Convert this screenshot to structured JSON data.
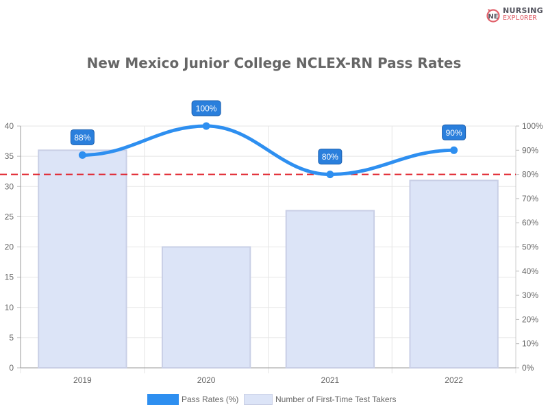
{
  "logo": {
    "line1": "NURSING",
    "line2": "EXPLORER"
  },
  "title": "New Mexico Junior College NCLEX-RN Pass Rates",
  "legend": [
    {
      "label": "Pass Rates (%)",
      "color": "#2e8ff0"
    },
    {
      "label": "Number of First-Time Test Takers",
      "color": "#dce4f7",
      "border": "#c9cfe6"
    }
  ],
  "chart_data": {
    "type": "bar+line",
    "title": "New Mexico Junior College NCLEX-RN Pass Rates",
    "categories": [
      "2019",
      "2020",
      "2021",
      "2022"
    ],
    "series": [
      {
        "name": "Number of First-Time Test Takers",
        "type": "bar",
        "axis": "left",
        "values": [
          36,
          20,
          26,
          31
        ],
        "color": "#dce4f7"
      },
      {
        "name": "Pass Rates (%)",
        "type": "line",
        "axis": "right",
        "values": [
          88,
          100,
          80,
          90
        ],
        "labels": [
          "88%",
          "100%",
          "80%",
          "90%"
        ],
        "color": "#2e8ff0"
      }
    ],
    "reference_line": {
      "axis": "right",
      "value": 80,
      "style": "dashed",
      "color": "#e0202a"
    },
    "left_axis": {
      "range": [
        0,
        40
      ],
      "ticks": [
        "0",
        "5",
        "10",
        "15",
        "20",
        "25",
        "30",
        "35",
        "40"
      ]
    },
    "right_axis": {
      "range": [
        0,
        100
      ],
      "ticks": [
        "0%",
        "10%",
        "20%",
        "30%",
        "40%",
        "50%",
        "60%",
        "70%",
        "80%",
        "90%",
        "100%"
      ]
    },
    "xlabel": "",
    "ylabel": "",
    "grid": true,
    "legend_position": "bottom"
  }
}
